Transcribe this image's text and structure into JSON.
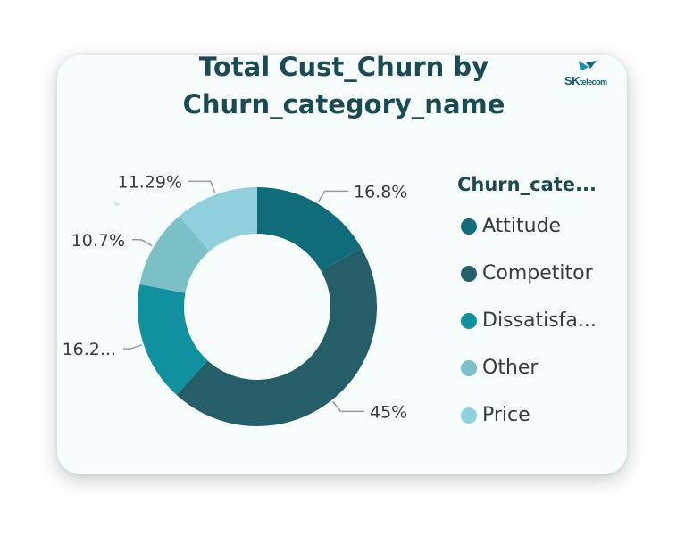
{
  "logo": {
    "text_main": "SK",
    "text_small": "telecom"
  },
  "chart_data": {
    "type": "pie",
    "title": "Total Cust_Churn by\nChurn_category_name",
    "hole": true,
    "legend": {
      "title": "Churn_cate...",
      "position": "right"
    },
    "slices": [
      {
        "name": "Attitude",
        "legend_label": "Attitude",
        "value": 16.8,
        "label": "16.8%",
        "color": "#0f6c78"
      },
      {
        "name": "Competitor",
        "legend_label": "Competitor",
        "value": 45,
        "label": "45%",
        "color": "#255d69"
      },
      {
        "name": "Dissatisfaction",
        "legend_label": "Dissatisfa...",
        "value": 16.2,
        "label": "16.2...",
        "color": "#1191a0"
      },
      {
        "name": "Other",
        "legend_label": "Other",
        "value": 10.7,
        "label": "10.7%",
        "color": "#7bbfc7"
      },
      {
        "name": "Price",
        "legend_label": "Price",
        "value": 11.29,
        "label": "11.29%",
        "color": "#8fd0dc"
      }
    ]
  }
}
